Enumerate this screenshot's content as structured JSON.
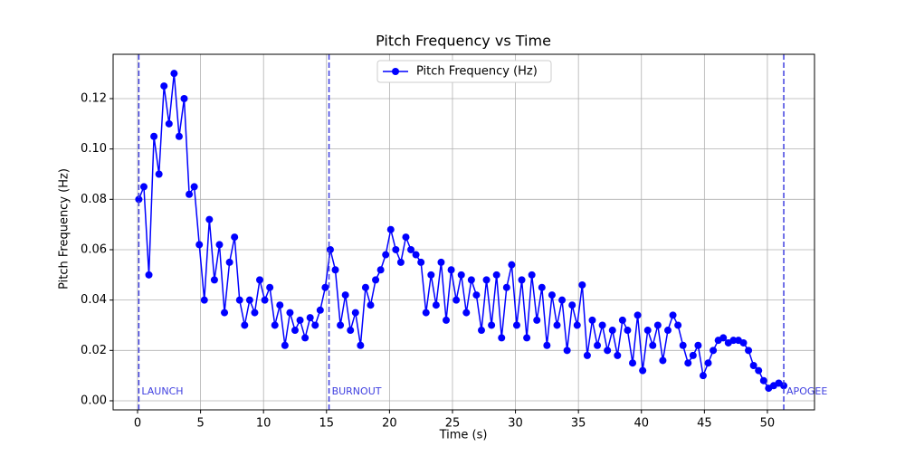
{
  "chart_data": {
    "type": "line",
    "title": "Pitch Frequency vs Time",
    "x_label": "Time (s)",
    "y_label": "Pitch Frequency (Hz)",
    "x": [
      0.1,
      0.5,
      0.9,
      1.3,
      1.7,
      2.1,
      2.5,
      2.9,
      3.3,
      3.7,
      4.1,
      4.5,
      4.9,
      5.3,
      5.7,
      6.1,
      6.5,
      6.9,
      7.3,
      7.7,
      8.1,
      8.5,
      8.9,
      9.3,
      9.7,
      10.1,
      10.5,
      10.9,
      11.3,
      11.7,
      12.1,
      12.5,
      12.9,
      13.3,
      13.7,
      14.1,
      14.5,
      14.9,
      15.3,
      15.7,
      16.1,
      16.5,
      16.9,
      17.3,
      17.7,
      18.1,
      18.5,
      18.9,
      19.3,
      19.7,
      20.1,
      20.5,
      20.9,
      21.3,
      21.7,
      22.1,
      22.5,
      22.9,
      23.3,
      23.7,
      24.1,
      24.5,
      24.9,
      25.3,
      25.7,
      26.1,
      26.5,
      26.9,
      27.3,
      27.7,
      28.1,
      28.5,
      28.9,
      29.3,
      29.7,
      30.1,
      30.5,
      30.9,
      31.3,
      31.7,
      32.1,
      32.5,
      32.9,
      33.3,
      33.7,
      34.1,
      34.5,
      34.9,
      35.3,
      35.7,
      36.1,
      36.5,
      36.9,
      37.3,
      37.7,
      38.1,
      38.5,
      38.9,
      39.3,
      39.7,
      40.1,
      40.5,
      40.9,
      41.3,
      41.7,
      42.1,
      42.5,
      42.9,
      43.3,
      43.7,
      44.1,
      44.5,
      44.9,
      45.3,
      45.7,
      46.1,
      46.5,
      46.9,
      47.3,
      47.7,
      48.1,
      48.5,
      48.9,
      49.3,
      49.7,
      50.1,
      50.5,
      50.9,
      51.3
    ],
    "series": [
      {
        "name": "Pitch Frequency (Hz)",
        "color": "#0000ff",
        "values": [
          0.08,
          0.085,
          0.05,
          0.105,
          0.09,
          0.125,
          0.11,
          0.13,
          0.105,
          0.12,
          0.082,
          0.085,
          0.062,
          0.04,
          0.072,
          0.048,
          0.062,
          0.035,
          0.055,
          0.065,
          0.04,
          0.03,
          0.04,
          0.035,
          0.048,
          0.04,
          0.045,
          0.03,
          0.038,
          0.022,
          0.035,
          0.028,
          0.032,
          0.025,
          0.033,
          0.03,
          0.036,
          0.045,
          0.06,
          0.052,
          0.03,
          0.042,
          0.028,
          0.035,
          0.022,
          0.045,
          0.038,
          0.048,
          0.052,
          0.058,
          0.068,
          0.06,
          0.055,
          0.065,
          0.06,
          0.058,
          0.055,
          0.035,
          0.05,
          0.038,
          0.055,
          0.032,
          0.052,
          0.04,
          0.05,
          0.035,
          0.048,
          0.042,
          0.028,
          0.048,
          0.03,
          0.05,
          0.025,
          0.045,
          0.054,
          0.03,
          0.048,
          0.025,
          0.05,
          0.032,
          0.045,
          0.022,
          0.042,
          0.03,
          0.04,
          0.02,
          0.038,
          0.03,
          0.046,
          0.018,
          0.032,
          0.022,
          0.03,
          0.02,
          0.028,
          0.018,
          0.032,
          0.028,
          0.015,
          0.034,
          0.012,
          0.028,
          0.022,
          0.03,
          0.016,
          0.028,
          0.034,
          0.03,
          0.022,
          0.015,
          0.018,
          0.022,
          0.01,
          0.015,
          0.02,
          0.024,
          0.025,
          0.023,
          0.024,
          0.024,
          0.023,
          0.02,
          0.014,
          0.012,
          0.008,
          0.005,
          0.006,
          0.007,
          0.006
        ]
      }
    ],
    "events": [
      {
        "x": 0.1,
        "label": "LAUNCH"
      },
      {
        "x": 15.2,
        "label": "BURNOUT"
      },
      {
        "x": 51.3,
        "label": "APOGEE"
      }
    ],
    "event_color": "#4040e0",
    "xlim": [
      -1.94,
      53.74
    ],
    "ylim": [
      -0.0036,
      0.1376
    ],
    "xticks": [
      0,
      5,
      10,
      15,
      20,
      25,
      30,
      35,
      40,
      45,
      50
    ],
    "yticks": [
      {
        "value": 0,
        "label": "0.00"
      },
      {
        "value": 0.02,
        "label": "0.02"
      },
      {
        "value": 0.04,
        "label": "0.04"
      },
      {
        "value": 0.06,
        "label": "0.06"
      },
      {
        "value": 0.08,
        "label": "0.08"
      },
      {
        "value": 0.1,
        "label": "0.10"
      },
      {
        "value": 0.12,
        "label": "0.12"
      }
    ],
    "grid": true,
    "legend": "upper center"
  }
}
